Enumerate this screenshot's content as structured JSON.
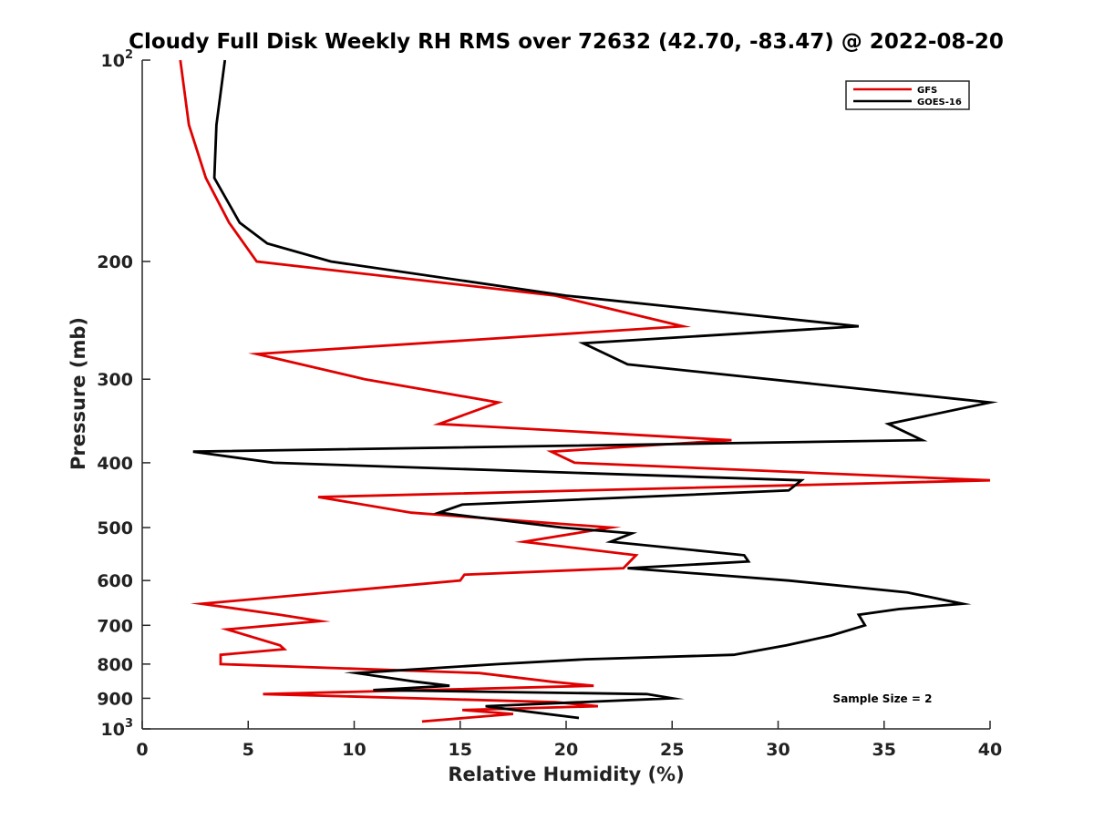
{
  "chart_data": {
    "type": "line",
    "title": "Cloudy Full Disk Weekly RH RMS over 72632 (42.70, -83.47) @ 2022-08-20",
    "xlabel": "Relative Humidity (%)",
    "ylabel": "Pressure (mb)",
    "xlim": [
      0,
      40
    ],
    "ylim": [
      100,
      1000
    ],
    "yscale": "log",
    "yreversed": true,
    "grid": false,
    "legend_position": "top-right",
    "x_ticks": [
      "0",
      "5",
      "10",
      "15",
      "20",
      "25",
      "30",
      "35",
      "40"
    ],
    "x_tick_values": [
      0,
      5,
      10,
      15,
      20,
      25,
      30,
      35,
      40
    ],
    "y_ticks": [
      {
        "value": 100,
        "base": "10",
        "exp": "2"
      },
      {
        "value": 200,
        "label": "200"
      },
      {
        "value": 300,
        "label": "300"
      },
      {
        "value": 400,
        "label": "400"
      },
      {
        "value": 500,
        "label": "500"
      },
      {
        "value": 600,
        "label": "600"
      },
      {
        "value": 700,
        "label": "700"
      },
      {
        "value": 800,
        "label": "800"
      },
      {
        "value": 900,
        "label": "900"
      },
      {
        "value": 1000,
        "base": "10",
        "exp": "3"
      }
    ],
    "series": [
      {
        "name": "GFS",
        "color": "#e00000",
        "points": [
          [
            1.8,
            100
          ],
          [
            2.2,
            125
          ],
          [
            3.0,
            150
          ],
          [
            4.1,
            175
          ],
          [
            5.4,
            200
          ],
          [
            19.5,
            225
          ],
          [
            25.5,
            250
          ],
          [
            5.4,
            275
          ],
          [
            10.5,
            300
          ],
          [
            16.8,
            325
          ],
          [
            14.0,
            350
          ],
          [
            27.8,
            370
          ],
          [
            19.3,
            385
          ],
          [
            20.4,
            400
          ],
          [
            40.0,
            425
          ],
          [
            8.3,
            450
          ],
          [
            12.7,
            475
          ],
          [
            22.1,
            500
          ],
          [
            18.0,
            525
          ],
          [
            23.3,
            550
          ],
          [
            22.7,
            575
          ],
          [
            15.2,
            588
          ],
          [
            15.0,
            600
          ],
          [
            2.8,
            650
          ],
          [
            6.5,
            675
          ],
          [
            8.4,
            690
          ],
          [
            4.0,
            710
          ],
          [
            6.5,
            750
          ],
          [
            6.7,
            760
          ],
          [
            3.7,
            775
          ],
          [
            3.7,
            800
          ],
          [
            15.9,
            825
          ],
          [
            19.3,
            850
          ],
          [
            21.3,
            862
          ],
          [
            5.7,
            887
          ],
          [
            19.5,
            912
          ],
          [
            21.5,
            925
          ],
          [
            15.1,
            937
          ],
          [
            17.5,
            950
          ],
          [
            13.2,
            975
          ]
        ]
      },
      {
        "name": "GOES-16",
        "color": "#000000",
        "points": [
          [
            3.9,
            100
          ],
          [
            3.5,
            125
          ],
          [
            3.4,
            150
          ],
          [
            4.6,
            175
          ],
          [
            5.9,
            188
          ],
          [
            8.9,
            200
          ],
          [
            20.0,
            225
          ],
          [
            33.8,
            250
          ],
          [
            20.8,
            265
          ],
          [
            22.9,
            285
          ],
          [
            40.0,
            325
          ],
          [
            35.2,
            350
          ],
          [
            36.8,
            370
          ],
          [
            2.4,
            385
          ],
          [
            6.2,
            400
          ],
          [
            31.1,
            425
          ],
          [
            30.5,
            440
          ],
          [
            15.1,
            462
          ],
          [
            14.0,
            475
          ],
          [
            19.8,
            500
          ],
          [
            23.1,
            510
          ],
          [
            22.1,
            525
          ],
          [
            28.4,
            550
          ],
          [
            28.6,
            562
          ],
          [
            22.9,
            575
          ],
          [
            30.5,
            600
          ],
          [
            36.1,
            625
          ],
          [
            38.7,
            650
          ],
          [
            35.7,
            662
          ],
          [
            33.8,
            675
          ],
          [
            34.1,
            700
          ],
          [
            32.5,
            725
          ],
          [
            30.4,
            750
          ],
          [
            27.9,
            775
          ],
          [
            20.9,
            787
          ],
          [
            16.8,
            800
          ],
          [
            10.1,
            825
          ],
          [
            12.9,
            850
          ],
          [
            14.5,
            862
          ],
          [
            10.9,
            875
          ],
          [
            23.8,
            887
          ],
          [
            25.0,
            900
          ],
          [
            16.2,
            925
          ],
          [
            17.6,
            937
          ],
          [
            20.6,
            963
          ]
        ]
      }
    ],
    "annotations": [
      {
        "text": "Sample Size = 2"
      }
    ]
  }
}
